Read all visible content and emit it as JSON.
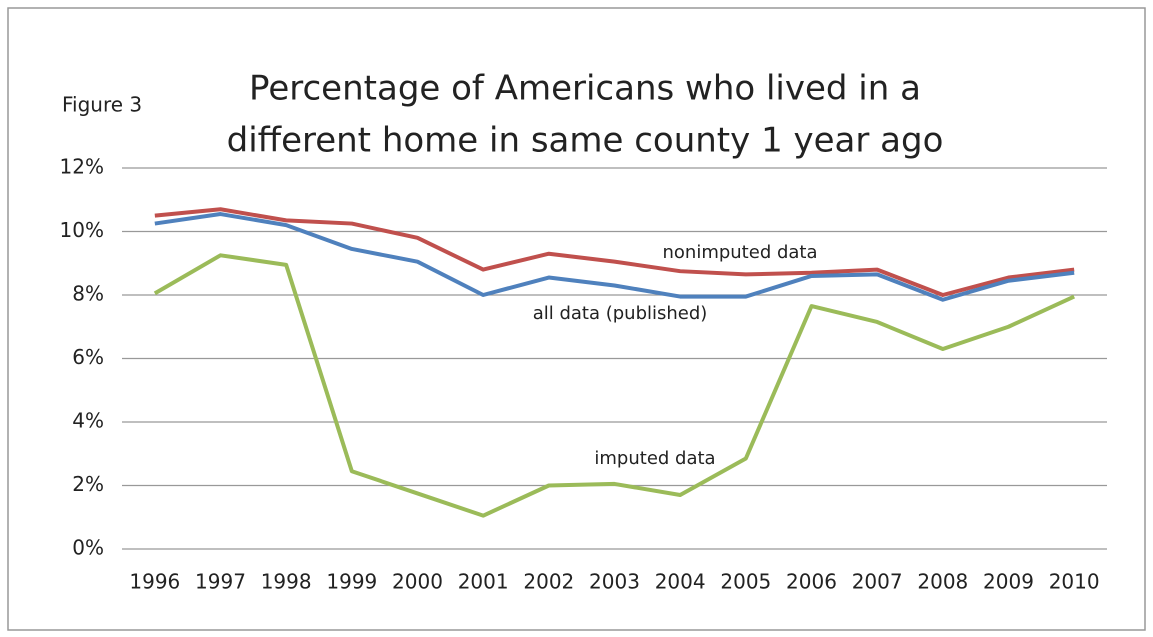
{
  "chart_data": {
    "type": "line",
    "label": "Figure 3",
    "title": [
      "Percentage of Americans who lived in a",
      "different home in same county 1 year ago"
    ],
    "categories": [
      "1996",
      "1997",
      "1998",
      "1999",
      "2000",
      "2001",
      "2002",
      "2003",
      "2004",
      "2005",
      "2006",
      "2007",
      "2008",
      "2009",
      "2010"
    ],
    "series": [
      {
        "name": "nonimputed data",
        "color": "#c0504d",
        "values": [
          10.5,
          10.7,
          10.35,
          10.25,
          9.8,
          8.8,
          9.3,
          9.05,
          8.75,
          8.65,
          8.7,
          8.8,
          8.0,
          8.55,
          8.8
        ]
      },
      {
        "name": "all data (published)",
        "color": "#4f81bd",
        "values": [
          10.25,
          10.55,
          10.2,
          9.45,
          9.05,
          8.0,
          8.55,
          8.3,
          7.95,
          7.95,
          8.6,
          8.65,
          7.85,
          8.45,
          8.7
        ]
      },
      {
        "name": "imputed data",
        "color": "#9bbb59",
        "values": [
          8.05,
          9.25,
          8.95,
          2.45,
          1.75,
          1.05,
          2.0,
          2.05,
          1.7,
          2.85,
          7.65,
          7.15,
          6.3,
          7.0,
          7.95
        ]
      }
    ],
    "ylim": [
      0,
      12
    ],
    "yticks": [
      {
        "value": 0,
        "label": "0%"
      },
      {
        "value": 2,
        "label": "2%"
      },
      {
        "value": 4,
        "label": "4%"
      },
      {
        "value": 6,
        "label": "6%"
      },
      {
        "value": 8,
        "label": "8%"
      },
      {
        "value": 10,
        "label": "10%"
      },
      {
        "value": 12,
        "label": "12%"
      }
    ],
    "grid": true
  }
}
